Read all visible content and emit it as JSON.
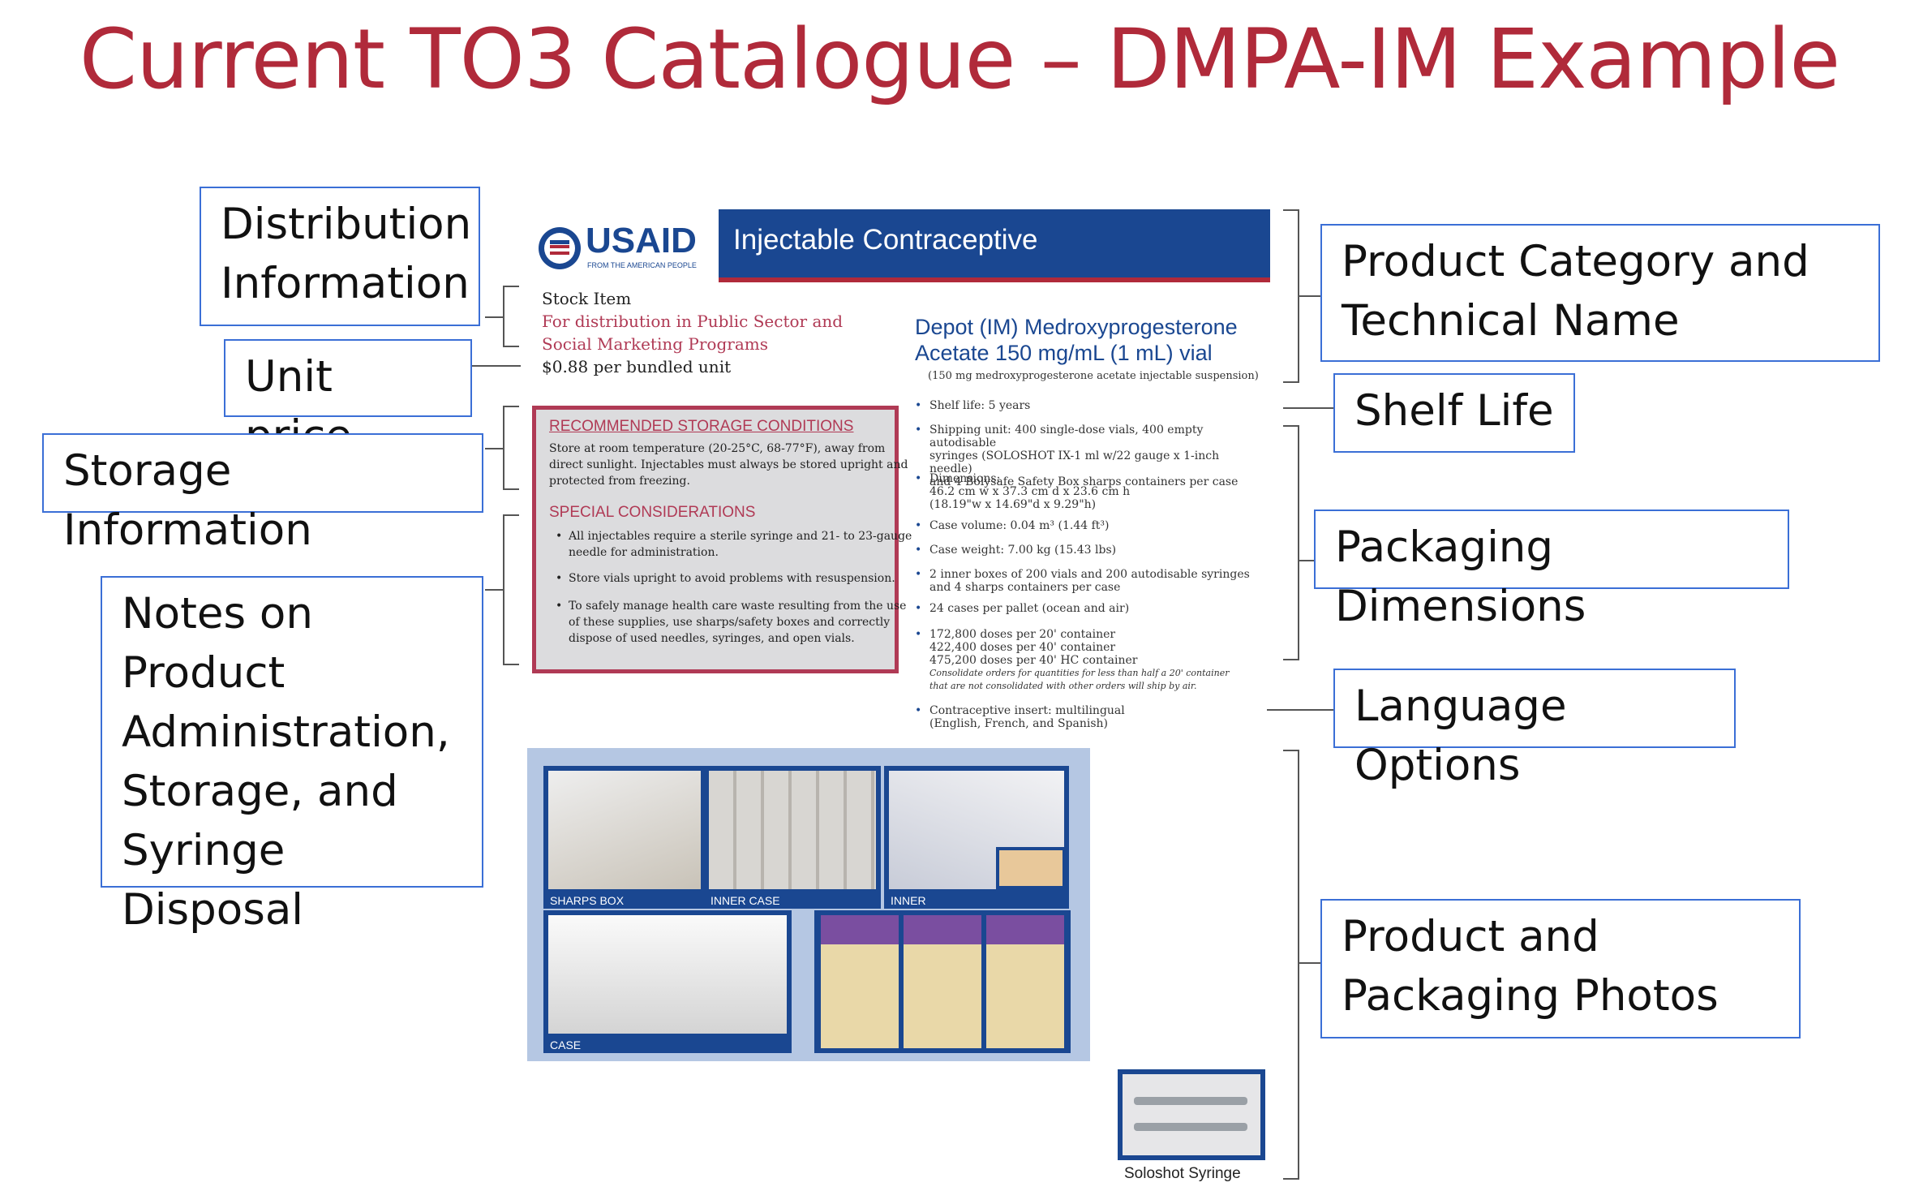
{
  "title": "Current TO3 Catalogue – DMPA-IM Example",
  "labels": {
    "distribution": [
      "Distribution",
      "Information"
    ],
    "unit_price": "Unit price",
    "storage": "Storage Information",
    "notes": [
      "Notes on",
      "Product",
      "Administration,",
      "Storage, and",
      "Syringe Disposal"
    ],
    "category": [
      "Product Category and",
      "Technical Name"
    ],
    "shelf_life": "Shelf Life",
    "packaging_dimensions": "Packaging Dimensions",
    "language": "Language Options",
    "photos": [
      "Product and",
      "Packaging Photos"
    ]
  },
  "doc": {
    "logo_text": "USAID",
    "logo_sub": "FROM THE AMERICAN PEOPLE",
    "header": "Injectable Contraceptive",
    "stock_item": "Stock Item",
    "distribution": [
      "For distribution in Public Sector and",
      "Social Marketing Programs"
    ],
    "price": "$0.88 per bundled unit",
    "storage_heading": "RECOMMENDED STORAGE CONDITIONS",
    "storage_text": [
      "Store at room temperature (20-25°C, 68-77°F), away from",
      "direct sunlight. Injectables must always be stored upright and",
      "protected from freezing."
    ],
    "special_heading": "SPECIAL CONSIDERATIONS",
    "special_items": [
      [
        "All injectables require a sterile syringe and 21- to 23-gauge",
        "needle for administration."
      ],
      [
        "Store vials upright to avoid problems with resuspension."
      ],
      [
        "To safely manage health care waste resulting from the use",
        "of these supplies, use sharps/safety boxes and correctly",
        "dispose of used needles, syringes, and open vials."
      ]
    ],
    "product_name": [
      "Depot (IM) Medroxyprogesterone",
      "Acetate 150 mg/mL (1 mL) vial"
    ],
    "product_sub": "(150 mg medroxyprogesterone acetate injectable suspension)",
    "specs": [
      [
        "Shelf life: 5 years"
      ],
      [
        "Shipping unit: 400 single-dose vials, 400 empty autodisable",
        "syringes (SOLOSHOT IX-1 ml w/22 gauge x 1-inch needle)",
        "and 4 Bolysafe Safety Box sharps containers per case"
      ],
      [
        "Dimensions:",
        "46.2 cm w x 37.3 cm d x 23.6 cm h",
        "(18.19\"w x 14.69\"d x 9.29\"h)"
      ],
      [
        "Case volume: 0.04 m³ (1.44 ft³)"
      ],
      [
        "Case weight: 7.00 kg (15.43 lbs)"
      ],
      [
        "2 inner boxes of 200 vials and 200 autodisable syringes",
        "and 4 sharps containers per case"
      ],
      [
        "24 cases per pallet (ocean and air)"
      ],
      [
        "172,800 doses per 20' container",
        "422,400 doses per 40' container",
        "475,200 doses per 40' HC container",
        "Consolidate orders for quantities for less than half a 20' container",
        "that are not consolidated with other orders will ship by air."
      ],
      [
        "Contraceptive insert: multilingual",
        "(English, French, and Spanish)"
      ]
    ],
    "photos": {
      "sharps_box": "SHARPS BOX",
      "inner_case": "INNER CASE",
      "inner": "INNER",
      "case": "CASE"
    },
    "syringe_caption": "Soloshot Syringe"
  },
  "colors": {
    "title": "#b02a3a",
    "label_border": "#3b6fd6",
    "usaid_blue": "#1a4791",
    "accent_red": "#b03a55"
  }
}
